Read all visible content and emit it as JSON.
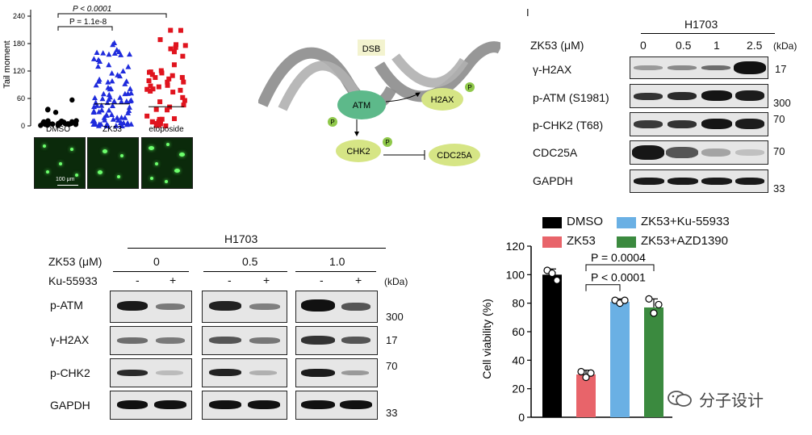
{
  "panelA": {
    "ylabel": "Tail moment",
    "yticks": [
      "0",
      "60",
      "120",
      "180",
      "240"
    ],
    "groups": [
      "DMSO",
      "ZK53",
      "etoposide"
    ],
    "p_outer": "P < 0.0001",
    "p_inner": "P = 1.1e-8",
    "scale": "100 μm",
    "colors": {
      "DMSO": "#000000",
      "ZK53": "#1f2bdc",
      "etoposide": "#e0141e"
    }
  },
  "panelB": {
    "dsb": "DSB",
    "atm": "ATM",
    "h2ax": "H2AX",
    "chk2": "CHK2",
    "cdc25a": "CDC25A",
    "p": "P"
  },
  "panelC": {
    "marker": "I",
    "cell_line": "H1703",
    "treatment": "ZK53 (μM)",
    "doses": [
      "0",
      "0.5",
      "1",
      "2.5"
    ],
    "kda": "(kDa)",
    "rows": [
      {
        "label": "γ-H2AX",
        "kda": "17"
      },
      {
        "label": "p-ATM (S1981)",
        "kda": "300"
      },
      {
        "label": "p-CHK2 (T68)",
        "kda": "70"
      },
      {
        "label": "CDC25A",
        "kda": "70"
      },
      {
        "label": "GAPDH",
        "kda": "33"
      }
    ]
  },
  "panelD": {
    "cell_line": "H1703",
    "treatment": "ZK53 (μM)",
    "inhibitor": "Ku-55933",
    "doses": [
      "0",
      "0.5",
      "1.0"
    ],
    "signs": [
      "-",
      "+",
      "-",
      "+",
      "-",
      "+"
    ],
    "kda": "(kDa)",
    "rows": [
      {
        "label": "p-ATM",
        "kda": "300"
      },
      {
        "label": "γ-H2AX",
        "kda": "17"
      },
      {
        "label": "p-CHK2",
        "kda": "70"
      },
      {
        "label": "GAPDH",
        "kda": "33"
      }
    ]
  },
  "chart_data": {
    "type": "bar",
    "categories": [
      "DMSO",
      "ZK53",
      "ZK53+Ku-55933",
      "ZK53+AZD1390"
    ],
    "values": [
      100,
      30,
      81,
      77
    ],
    "errors": [
      4,
      3,
      2,
      6
    ],
    "points": [
      [
        103,
        101,
        96
      ],
      [
        32,
        28,
        31
      ],
      [
        82,
        80,
        82
      ],
      [
        83,
        73,
        79
      ]
    ],
    "colors": [
      "#000000",
      "#e8646a",
      "#6ab0e4",
      "#3b8a3f"
    ],
    "ylabel": "Cell viability (%)",
    "ylim": [
      0,
      120
    ],
    "yticks": [
      0,
      20,
      40,
      60,
      80,
      100,
      120
    ],
    "annotations": [
      "P = 0.0004",
      "P < 0.0001"
    ],
    "legend": [
      "DMSO",
      "ZK53",
      "ZK53+Ku-55933",
      "ZK53+AZD1390"
    ]
  },
  "watermark": {
    "text": "分子设计"
  }
}
